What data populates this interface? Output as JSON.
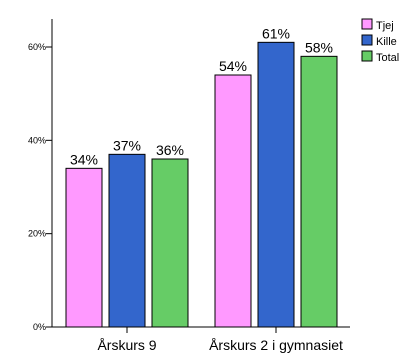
{
  "chart_data": {
    "type": "bar",
    "title": "",
    "xlabel": "",
    "ylabel": "",
    "categories": [
      "Årskurs 9",
      "Årskurs 2 i gymnasiet"
    ],
    "series": [
      {
        "name": "Tjej",
        "values": [
          34,
          54
        ],
        "labels": [
          "34%",
          "54%"
        ],
        "color": "#ff99ff"
      },
      {
        "name": "Kille",
        "values": [
          37,
          61
        ],
        "labels": [
          "37%",
          "61%"
        ],
        "color": "#3366cc"
      },
      {
        "name": "Total",
        "values": [
          36,
          58
        ],
        "labels": [
          "36%",
          "58%"
        ],
        "color": "#66cc66"
      }
    ],
    "yticks": [
      0,
      20,
      40,
      60
    ],
    "ytick_labels": [
      "0%",
      "20%",
      "40%",
      "60%"
    ],
    "ylim": [
      0,
      66
    ],
    "grid": false,
    "legend_position": "top-right"
  }
}
